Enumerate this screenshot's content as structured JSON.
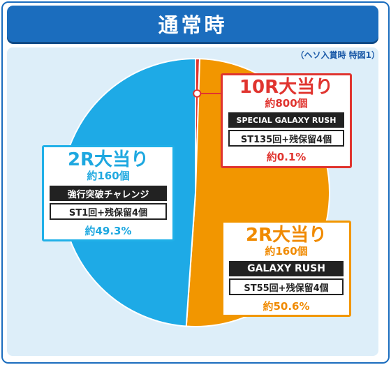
{
  "title": "通常時",
  "note": "（ヘソ入賞時 特図1）",
  "chart_data": {
    "type": "pie",
    "title": "通常時",
    "slices": [
      {
        "label": "10R大当り",
        "count": "約800個",
        "mode": "SPECIAL GALAXY RUSH",
        "detail": "ST135回+残保留4個",
        "percent_label": "約0.1%",
        "value": 0.1,
        "color": "#e0342f"
      },
      {
        "label": "2R大当り",
        "count": "約160個",
        "mode": "GALAXY RUSH",
        "detail": "ST55回+残保留4個",
        "percent_label": "約50.6%",
        "value": 50.6,
        "color": "#f29600"
      },
      {
        "label": "2R大当り",
        "count": "約160個",
        "mode": "強行突破チャレンジ",
        "detail": "ST1回+残保留4個",
        "percent_label": "約49.3%",
        "value": 49.3,
        "color": "#1eaae6"
      }
    ]
  }
}
